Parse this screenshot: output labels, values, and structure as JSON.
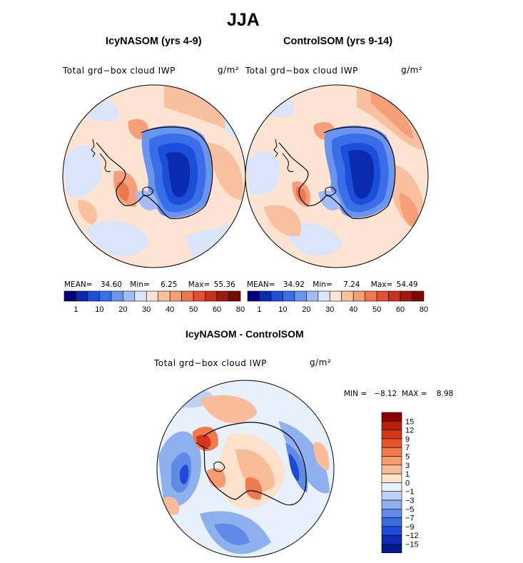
{
  "title": "JJA",
  "panels": [
    {
      "id": "icy",
      "title": "IcyNASOM (yrs 4-9)",
      "variable": "Total grd−box cloud IWP",
      "units": "g/m²",
      "stats": {
        "mean_label": "MEAN=",
        "mean": "34.60",
        "min_label": "Min=",
        "min": "6.25",
        "max_label": "Max=",
        "max": "55.36"
      }
    },
    {
      "id": "control",
      "title": "ControlSOM (yrs 9-14)",
      "variable": "Total grd−box cloud IWP",
      "units": "g/m²",
      "stats": {
        "mean_label": "MEAN=",
        "mean": "34.92",
        "min_label": "Min=",
        "min": "7.24",
        "max_label": "Max=",
        "max": "54.49"
      }
    }
  ],
  "difference": {
    "title": "IcyNASOM - ControlSOM",
    "variable": "Total grd−box cloud IWP",
    "units": "g/m²",
    "minmax": "MIN =   −8.12  MAX =    8.98"
  },
  "colorbar_abs": {
    "colors": [
      "#00007f",
      "#0a2bb0",
      "#1c4fd8",
      "#3a6ee8",
      "#6a94ee",
      "#a1bdf3",
      "#d8e5fa",
      "#fde3d2",
      "#f9c0a0",
      "#f59e78",
      "#ee7750",
      "#e45130",
      "#c8321c",
      "#a01a0c",
      "#7a0a04"
    ],
    "labels": [
      "1",
      "10",
      "20",
      "30",
      "40",
      "50",
      "60",
      "80"
    ]
  },
  "colorbar_diff": {
    "colors": [
      "#8b0000",
      "#b81e0a",
      "#d6371a",
      "#e8552c",
      "#f07a4e",
      "#f59b72",
      "#f9bc98",
      "#fde1cb",
      "#e8f0fb",
      "#bdd2f4",
      "#8fb0ee",
      "#5f8be6",
      "#3a6ae0",
      "#1f4ad6",
      "#0d2ab8",
      "#001a8a"
    ],
    "labels": [
      "15",
      "12",
      "9",
      "7",
      "5",
      "3",
      "1",
      "0",
      "−1",
      "−3",
      "−5",
      "−7",
      "−9",
      "−12",
      "−15"
    ]
  }
}
